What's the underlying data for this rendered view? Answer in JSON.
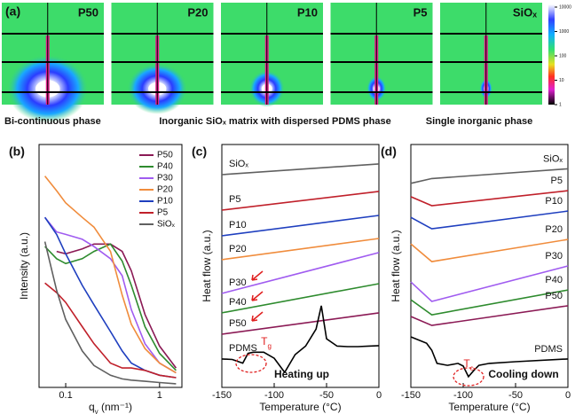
{
  "figure_a": {
    "label": "(a)",
    "panels": [
      {
        "title": "P50"
      },
      {
        "title": "P20"
      },
      {
        "title": "P10"
      },
      {
        "title": "P5"
      },
      {
        "title": "SiOₓ"
      }
    ],
    "colorbar_ticks": [
      10000,
      1000,
      100,
      10,
      1
    ],
    "captions": [
      "Bi-continuous phase",
      "Inorganic SiOₓ matrix with dispersed PDMS phase",
      "Single inorganic phase"
    ]
  },
  "chart_data": [
    {
      "type": "line",
      "panel_label": "(b)",
      "y_label": "Intensity (a.u.)",
      "x_label": {
        "main": "q",
        "sub": "y",
        "rest": " (nm⁻¹)"
      },
      "xlog": true,
      "xlim": [
        0.052,
        1.73
      ],
      "ylim": [
        0,
        10
      ],
      "xticks": [
        0.1,
        1
      ],
      "legend": "upper right",
      "x": [
        0.06,
        0.08,
        0.1,
        0.15,
        0.2,
        0.3,
        0.4,
        0.5,
        0.7,
        1,
        1.5
      ],
      "series": [
        {
          "name": "P50",
          "color": "#8b1a55",
          "values": [
            null,
            5.6,
            5.5,
            5.7,
            5.9,
            5.9,
            5.6,
            4.8,
            3.0,
            1.7,
            0.8
          ]
        },
        {
          "name": "P40",
          "color": "#2e8b2e",
          "values": [
            5.8,
            5.3,
            5.1,
            5.3,
            5.6,
            5.9,
            5.2,
            4.2,
            2.5,
            1.4,
            0.7
          ]
        },
        {
          "name": "P30",
          "color": "#a05cf0",
          "values": [
            7.0,
            6.4,
            6.3,
            6.1,
            5.8,
            5.3,
            4.6,
            3.2,
            1.8,
            1.0,
            0.6
          ]
        },
        {
          "name": "P20",
          "color": "#f08c3c",
          "values": [
            8.7,
            8.1,
            7.6,
            7.0,
            6.6,
            5.6,
            3.8,
            2.6,
            1.6,
            1.0,
            0.6
          ]
        },
        {
          "name": "P10",
          "color": "#1f3fbf",
          "values": [
            7.0,
            6.3,
            5.5,
            4.2,
            3.4,
            2.3,
            1.5,
            1.0,
            0.7,
            0.5,
            0.4
          ]
        },
        {
          "name": "P5",
          "color": "#c0202a",
          "values": [
            4.3,
            3.9,
            3.5,
            2.5,
            1.8,
            1.0,
            0.8,
            0.8,
            0.7,
            0.5,
            0.4
          ]
        },
        {
          "name": "SiOₓ",
          "color": "#606060",
          "values": [
            6.0,
            4.0,
            2.8,
            1.5,
            0.9,
            0.5,
            0.35,
            0.3,
            0.25,
            0.2,
            0.15
          ]
        }
      ]
    },
    {
      "type": "line",
      "panel_label": "(c)",
      "y_label": "Heat flow (a.u.)",
      "x_label": {
        "main": "Temperature (°C)"
      },
      "xlim": [
        -150,
        0
      ],
      "ylim": [
        0,
        10
      ],
      "xticks": [
        -150,
        -100,
        -50,
        0
      ],
      "label_side": "left",
      "annotations": [
        {
          "main": "T",
          "sub": "g"
        },
        {
          "main": "Heating up"
        }
      ],
      "series": [
        {
          "name": "SiOₓ",
          "color": "#606060",
          "x": [
            -150,
            0
          ],
          "values": [
            8.76,
            9.2
          ]
        },
        {
          "name": "P5",
          "color": "#c0202a",
          "x": [
            -150,
            0
          ],
          "values": [
            7.3,
            8.07
          ]
        },
        {
          "name": "P10",
          "color": "#1f3fbf",
          "x": [
            -150,
            0
          ],
          "values": [
            6.24,
            7.08
          ]
        },
        {
          "name": "P20",
          "color": "#f08c3c",
          "x": [
            -150,
            0
          ],
          "values": [
            5.26,
            6.13
          ]
        },
        {
          "name": "P30",
          "color": "#a05cf0",
          "x": [
            -150,
            0
          ],
          "values": [
            3.87,
            5.55
          ]
        },
        {
          "name": "P40",
          "color": "#2e8b2e",
          "x": [
            -150,
            0
          ],
          "values": [
            3.07,
            4.27
          ]
        },
        {
          "name": "P50",
          "color": "#8b1a55",
          "x": [
            -150,
            0
          ],
          "values": [
            2.19,
            3.07
          ]
        },
        {
          "name": "PDMS",
          "color": "#000000",
          "x": [
            -150,
            -140,
            -130,
            -125,
            -120,
            -110,
            -100,
            -90,
            -80,
            -70,
            -60,
            -55,
            -50,
            -40,
            -30,
            -20,
            -10,
            0
          ],
          "values": [
            1.17,
            1.15,
            1.0,
            1.4,
            1.45,
            1.45,
            1.2,
            0.62,
            1.35,
            1.7,
            2.4,
            3.36,
            2.0,
            1.7,
            1.68,
            1.68,
            1.7,
            1.72
          ]
        }
      ]
    },
    {
      "type": "line",
      "panel_label": "(d)",
      "y_label": "Heat flow (a.u.)",
      "x_label": {
        "main": "Temperature (°C)"
      },
      "xlim": [
        -150,
        0
      ],
      "ylim": [
        0,
        10
      ],
      "xticks": [
        -150,
        -100,
        -50,
        0
      ],
      "label_side": "right",
      "annotations": [
        {
          "main": "T",
          "sub": "c"
        },
        {
          "main": "Cooling down"
        }
      ],
      "series": [
        {
          "name": "SiOₓ",
          "color": "#606060",
          "x": [
            -150,
            -130,
            0
          ],
          "values": [
            8.4,
            8.6,
            9.0
          ]
        },
        {
          "name": "P5",
          "color": "#c0202a",
          "x": [
            -150,
            -130,
            0
          ],
          "values": [
            7.85,
            7.48,
            8.1
          ]
        },
        {
          "name": "P10",
          "color": "#1f3fbf",
          "x": [
            -150,
            -130,
            0
          ],
          "values": [
            7.0,
            6.53,
            7.26
          ]
        },
        {
          "name": "P20",
          "color": "#f08c3c",
          "x": [
            -150,
            -130,
            0
          ],
          "values": [
            5.91,
            5.18,
            6.09
          ]
        },
        {
          "name": "P30",
          "color": "#a05cf0",
          "x": [
            -150,
            -130,
            0
          ],
          "values": [
            4.34,
            3.54,
            5.0
          ]
        },
        {
          "name": "P40",
          "color": "#2e8b2e",
          "x": [
            -150,
            -130,
            0
          ],
          "values": [
            3.61,
            2.99,
            4.01
          ]
        },
        {
          "name": "P50",
          "color": "#8b1a55",
          "x": [
            -150,
            -130,
            0
          ],
          "values": [
            2.92,
            2.55,
            3.36
          ]
        },
        {
          "name": "PDMS",
          "color": "#000000",
          "x": [
            -150,
            -135,
            -130,
            -125,
            -115,
            -105,
            -100,
            -95,
            -90,
            -85,
            -75,
            -50,
            0
          ],
          "values": [
            2.08,
            1.82,
            1.53,
            0.99,
            0.91,
            0.99,
            0.88,
            0.44,
            0.69,
            0.91,
            0.99,
            1.06,
            1.17
          ]
        }
      ]
    }
  ]
}
